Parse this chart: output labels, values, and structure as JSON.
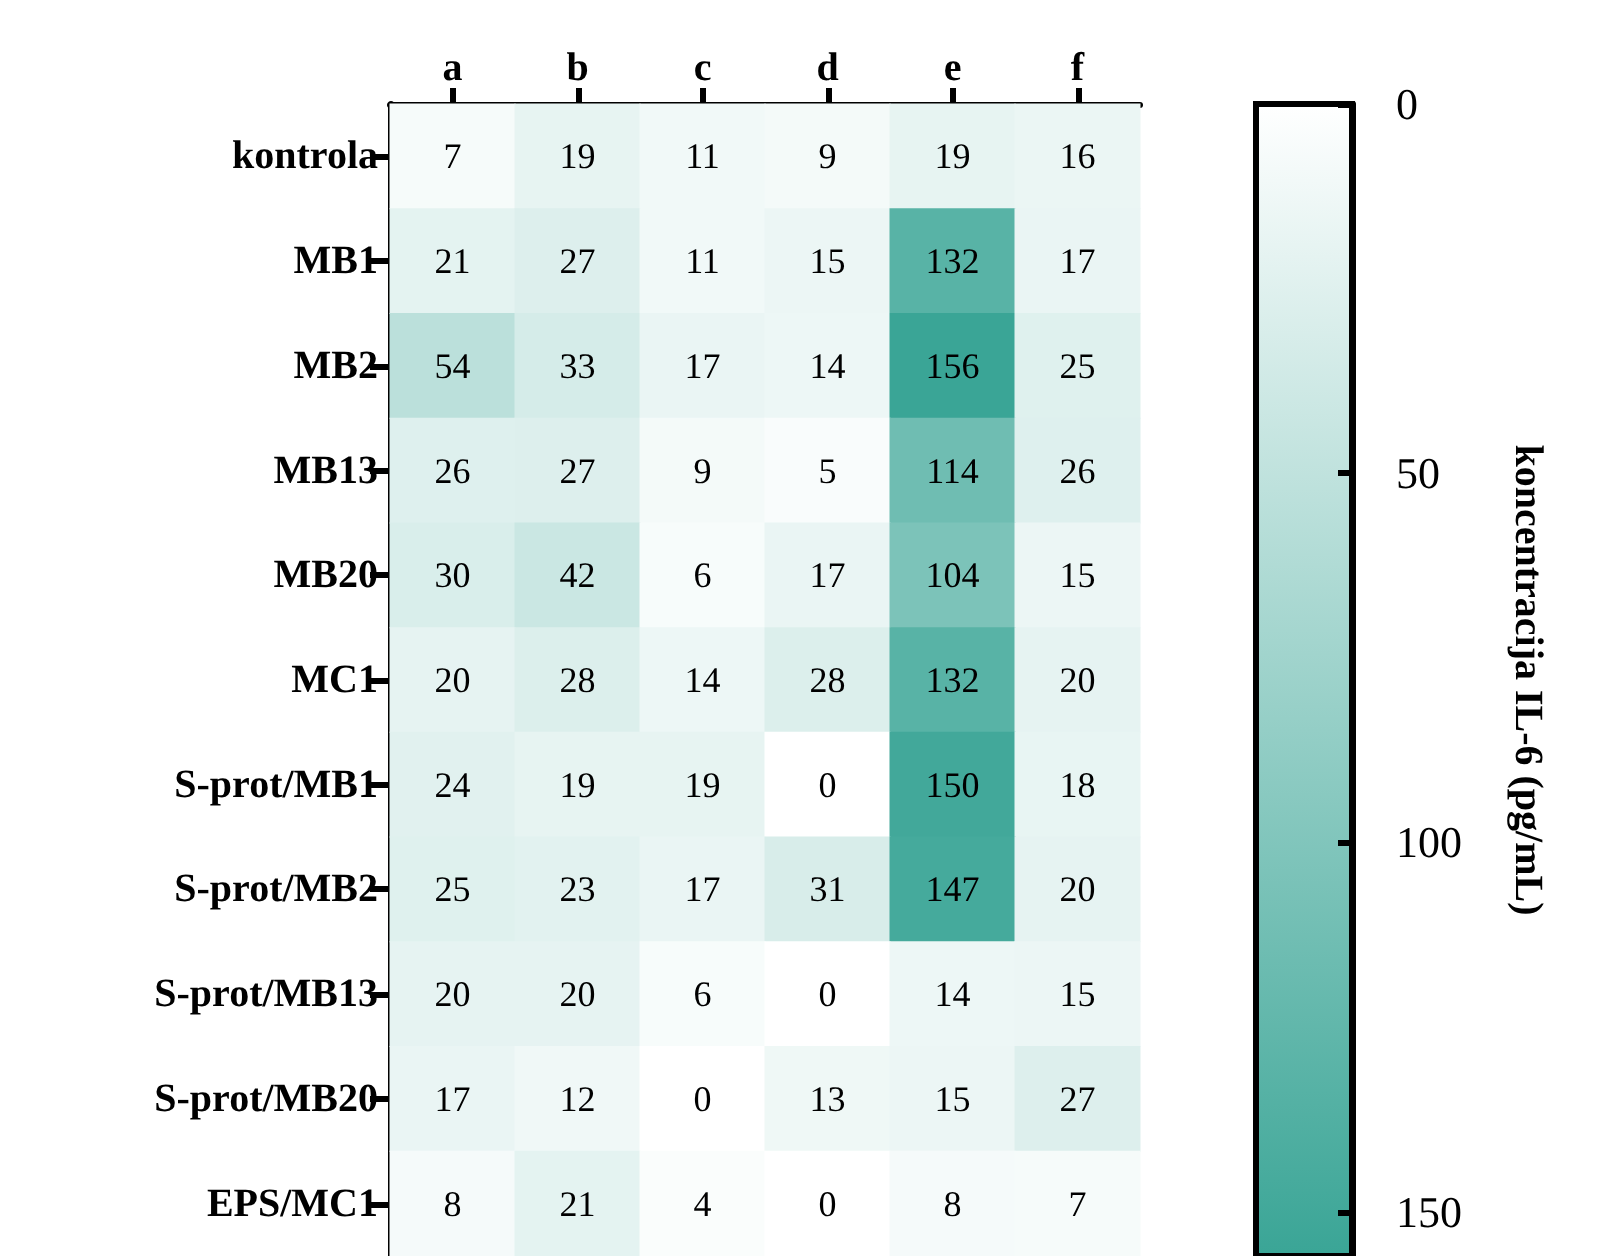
{
  "chart_data": {
    "type": "heatmap",
    "clabel": "koncentracija IL-6 (pg/mL)",
    "categories": [
      "a",
      "b",
      "c",
      "d",
      "e",
      "f"
    ],
    "y_categories": [
      "kontrola",
      "MB1",
      "MB2",
      "MB13",
      "MB20",
      "MC1",
      "S-prot/MB1",
      "S-prot/MB2",
      "S-prot/MB13",
      "S-prot/MB20",
      "EPS/MC1"
    ],
    "cells": [
      [
        7,
        19,
        11,
        9,
        19,
        16
      ],
      [
        21,
        27,
        11,
        15,
        132,
        17
      ],
      [
        54,
        33,
        17,
        14,
        156,
        25
      ],
      [
        26,
        27,
        9,
        5,
        114,
        26
      ],
      [
        30,
        42,
        6,
        17,
        104,
        15
      ],
      [
        20,
        28,
        14,
        28,
        132,
        20
      ],
      [
        24,
        19,
        19,
        0,
        150,
        18
      ],
      [
        25,
        23,
        17,
        31,
        147,
        20
      ],
      [
        20,
        20,
        6,
        0,
        14,
        15
      ],
      [
        17,
        12,
        0,
        13,
        15,
        27
      ],
      [
        8,
        21,
        4,
        0,
        8,
        7
      ]
    ],
    "data_labels": true,
    "clim": [
      0,
      156
    ],
    "cticks": [
      0,
      50,
      100,
      150
    ]
  }
}
